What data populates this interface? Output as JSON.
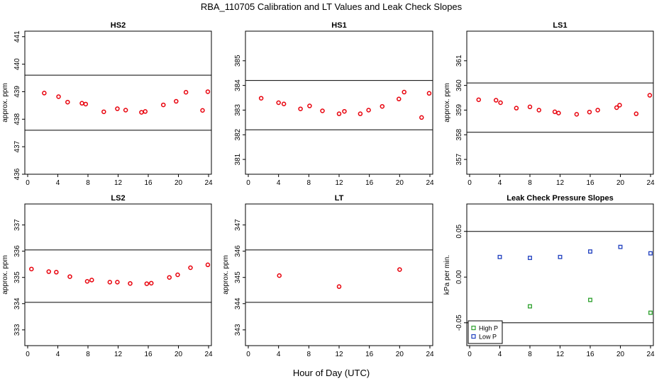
{
  "figure": {
    "title": "RBA_110705  Calibration and LT Values and Leak Check Slopes",
    "xlabel": "Hour of Day (UTC)"
  },
  "colors": {
    "point": "#e8000b",
    "high_p": "#2ca02c",
    "low_p": "#1f3fbf",
    "line": "#000000"
  },
  "chart_data": [
    {
      "type": "scatter",
      "title": "HS2",
      "ylabel": "approx. ppm",
      "xlim": [
        0,
        24
      ],
      "ylim": [
        436,
        441.2
      ],
      "xticks": [
        0,
        4,
        8,
        12,
        16,
        20,
        24
      ],
      "yticks": [
        436,
        437,
        438,
        439,
        440,
        441
      ],
      "hlines": [
        437.6,
        439.6
      ],
      "series": [
        {
          "marker": "circle",
          "color": "#e8000b",
          "x": [
            2.2,
            4.1,
            5.3,
            7.2,
            7.7,
            10.1,
            11.9,
            13.0,
            15.1,
            15.6,
            18.0,
            19.7,
            21.0,
            23.2,
            23.9
          ],
          "y": [
            438.95,
            438.82,
            438.62,
            438.58,
            438.55,
            438.27,
            438.38,
            438.33,
            438.25,
            438.28,
            438.52,
            438.65,
            438.98,
            438.32,
            439.0
          ]
        }
      ]
    },
    {
      "type": "scatter",
      "title": "HS1",
      "ylabel": "",
      "xlim": [
        0,
        24
      ],
      "ylim": [
        380.4,
        386.2
      ],
      "xticks": [
        0,
        4,
        8,
        12,
        16,
        20,
        24
      ],
      "yticks": [
        381,
        382,
        383,
        384,
        385
      ],
      "hlines": [
        382.2,
        384.2
      ],
      "series": [
        {
          "marker": "circle",
          "color": "#e8000b",
          "x": [
            1.7,
            4.0,
            4.7,
            6.9,
            8.1,
            9.8,
            12.0,
            12.7,
            14.8,
            15.9,
            17.7,
            19.9,
            20.6,
            22.9,
            23.9
          ],
          "y": [
            383.48,
            383.3,
            383.25,
            383.05,
            383.17,
            382.97,
            382.85,
            382.95,
            382.85,
            383.0,
            383.15,
            383.45,
            383.73,
            382.7,
            383.68
          ]
        }
      ]
    },
    {
      "type": "scatter",
      "title": "LS1",
      "ylabel": "approx. ppm",
      "xlim": [
        0,
        24
      ],
      "ylim": [
        356.4,
        362.2
      ],
      "xticks": [
        0,
        4,
        8,
        12,
        16,
        20,
        24
      ],
      "yticks": [
        357,
        358,
        359,
        360,
        361
      ],
      "hlines": [
        358.1,
        360.1
      ],
      "series": [
        {
          "marker": "circle",
          "color": "#e8000b",
          "x": [
            1.2,
            3.5,
            4.1,
            6.2,
            8.0,
            9.2,
            11.3,
            11.8,
            14.2,
            15.9,
            17.0,
            19.5,
            19.9,
            22.1,
            23.9
          ],
          "y": [
            359.42,
            359.4,
            359.3,
            359.08,
            359.13,
            359.0,
            358.93,
            358.88,
            358.83,
            358.92,
            359.0,
            359.1,
            359.2,
            358.85,
            359.6
          ]
        }
      ]
    },
    {
      "type": "scatter",
      "title": "LS2",
      "ylabel": "approx. ppm",
      "xlim": [
        0,
        24
      ],
      "ylim": [
        332.4,
        337.8
      ],
      "xticks": [
        0,
        4,
        8,
        12,
        16,
        20,
        24
      ],
      "yticks": [
        333,
        334,
        335,
        336,
        337
      ],
      "hlines": [
        334.05,
        336.05
      ],
      "series": [
        {
          "marker": "circle",
          "color": "#e8000b",
          "x": [
            0.5,
            2.8,
            3.8,
            5.6,
            7.9,
            8.5,
            10.9,
            11.9,
            13.6,
            15.8,
            16.4,
            18.8,
            19.9,
            21.6,
            23.9
          ],
          "y": [
            335.32,
            335.22,
            335.2,
            335.03,
            334.85,
            334.9,
            334.82,
            334.82,
            334.77,
            334.76,
            334.78,
            335.0,
            335.1,
            335.37,
            335.48
          ]
        }
      ]
    },
    {
      "type": "scatter",
      "title": "LT",
      "ylabel": "approx. ppm",
      "xlim": [
        0,
        24
      ],
      "ylim": [
        342.4,
        347.8
      ],
      "xticks": [
        0,
        4,
        8,
        12,
        16,
        20,
        24
      ],
      "yticks": [
        343,
        344,
        345,
        346,
        347
      ],
      "hlines": [
        344.05,
        346.05
      ],
      "series": [
        {
          "marker": "circle",
          "color": "#e8000b",
          "x": [
            4.1,
            12.0,
            20.0
          ],
          "y": [
            345.07,
            344.65,
            345.3
          ]
        }
      ]
    },
    {
      "type": "scatter",
      "title": "Leak Check Pressure Slopes",
      "ylabel": "kPa per min.",
      "xlim": [
        0,
        24
      ],
      "ylim": [
        -0.075,
        0.08
      ],
      "xticks": [
        0,
        4,
        8,
        12,
        16,
        20,
        24
      ],
      "yticks": [
        -0.05,
        0.0,
        0.05
      ],
      "ytick_labels": [
        "-0.05",
        "0.00",
        "0.05"
      ],
      "hlines": [
        -0.05,
        0.05
      ],
      "legend": {
        "placement": "bottom-left",
        "entries": [
          "High P",
          "Low P"
        ]
      },
      "series": [
        {
          "name": "High P",
          "marker": "square",
          "color": "#2ca02c",
          "x": [
            8,
            16,
            24
          ],
          "y": [
            -0.032,
            -0.025,
            -0.039
          ]
        },
        {
          "name": "Low P",
          "marker": "square",
          "color": "#1f3fbf",
          "x": [
            4,
            8,
            12,
            16,
            20,
            24
          ],
          "y": [
            0.022,
            0.021,
            0.022,
            0.028,
            0.033,
            0.026
          ]
        }
      ]
    }
  ]
}
